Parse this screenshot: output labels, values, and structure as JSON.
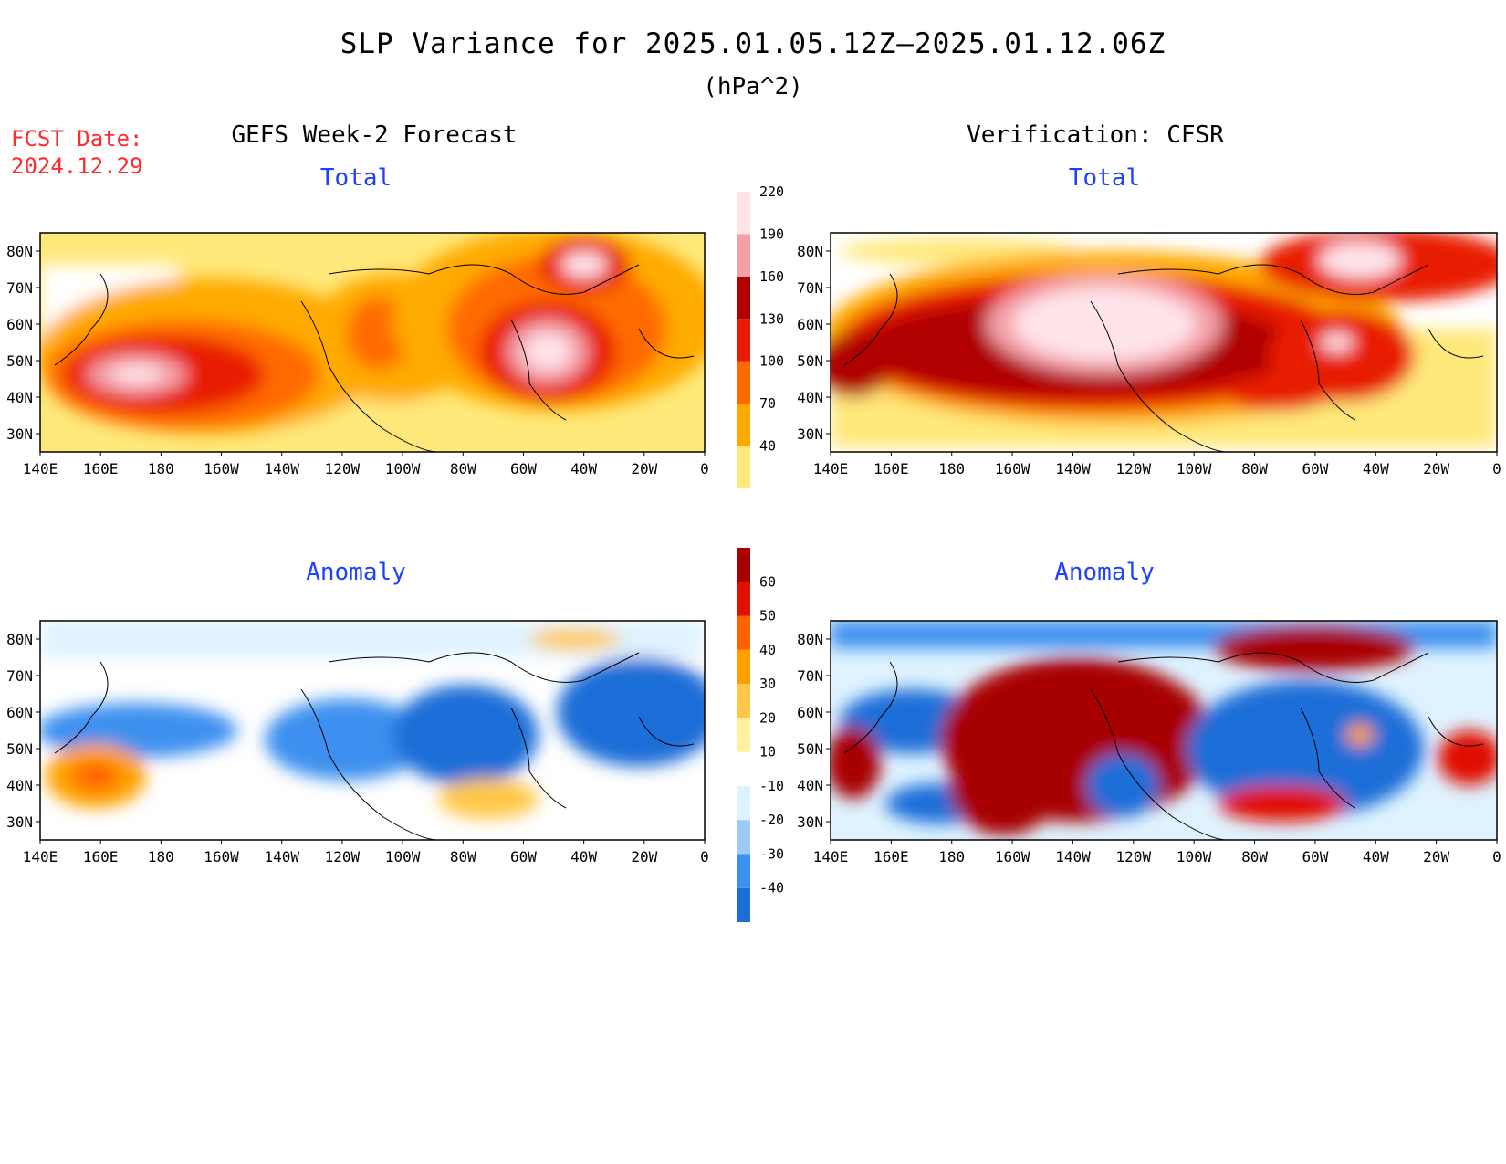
{
  "title": "SLP Variance for 2025.01.05.12Z–2025.01.12.06Z",
  "units": "(hPa^2)",
  "fcst_label": "FCST Date:",
  "fcst_date": "2024.12.29",
  "left_header": "GEFS Week-2 Forecast",
  "right_header": "Verification: CFSR",
  "total_label": "Total",
  "anomaly_label": "Anomaly",
  "lat_ticks": [
    "80N",
    "70N",
    "60N",
    "50N",
    "40N",
    "30N"
  ],
  "lon_ticks": [
    "140E",
    "160E",
    "180",
    "160W",
    "140W",
    "120W",
    "100W",
    "80W",
    "60W",
    "40W",
    "20W",
    "0"
  ],
  "colorbar_total": {
    "levels": [
      "40",
      "70",
      "100",
      "130",
      "160",
      "190",
      "220"
    ],
    "colors": [
      "#ffe87a",
      "#ffaa00",
      "#ff6a00",
      "#e81a00",
      "#b00000",
      "#f4a0a8",
      "#ffe4ea"
    ]
  },
  "colorbar_anom": {
    "levels": [
      "-40",
      "-30",
      "-20",
      "-10",
      "10",
      "20",
      "30",
      "40",
      "50",
      "60"
    ],
    "colors": [
      "#1e6ed8",
      "#3c90ef",
      "#9ccaf5",
      "#dff3ff",
      "#ffffff",
      "#fff1a0",
      "#ffc84a",
      "#ffa000",
      "#ff6000",
      "#e01000",
      "#a80000"
    ]
  },
  "colors": {
    "land_line": "#000000",
    "title_red": "#ff2a2a",
    "label_blue": "#1e40ff"
  }
}
